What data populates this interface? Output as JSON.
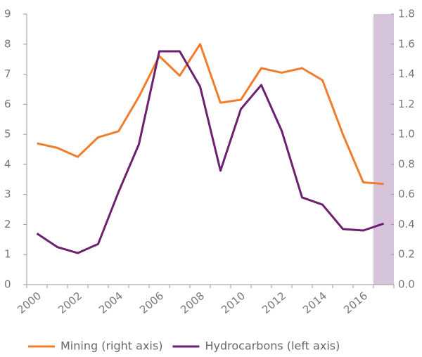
{
  "chart_data": {
    "type": "line",
    "categories": [
      "2000",
      null,
      "2002",
      null,
      "2004",
      null,
      "2006",
      null,
      "2008",
      null,
      "2010",
      null,
      "2012",
      null,
      "2014",
      null,
      "2016",
      null
    ],
    "series": [
      {
        "name": "Mining (right axis)",
        "color": "#ef7d2c",
        "axis": "y2",
        "values": [
          0.94,
          0.91,
          0.85,
          0.98,
          1.02,
          1.25,
          1.52,
          1.39,
          1.6,
          1.21,
          1.23,
          1.44,
          1.41,
          1.44,
          1.36,
          1.0,
          0.68,
          0.67
        ]
      },
      {
        "name": "Hydrocarbons (left axis)",
        "color": "#6b2070",
        "values": [
          1.7,
          1.25,
          1.05,
          1.35,
          3.08,
          4.67,
          7.76,
          7.76,
          6.59,
          3.79,
          5.84,
          6.64,
          5.12,
          2.9,
          2.66,
          1.85,
          1.8,
          2.03
        ]
      }
    ],
    "ylim": [
      0,
      9
    ],
    "yticks": [
      0,
      1,
      2,
      3,
      4,
      5,
      6,
      7,
      8,
      9
    ],
    "y2lim": [
      0,
      1.8
    ],
    "y2ticks": [
      {
        "value": 0,
        "label": "0.0"
      },
      0.2,
      0.4,
      0.6,
      0.8,
      {
        "value": 1,
        "label": "1.0"
      },
      1.2,
      1.4,
      1.6,
      1.8
    ],
    "highlight": {
      "category_index": 17,
      "color": "#d6c5da"
    },
    "legend": "bottom"
  }
}
